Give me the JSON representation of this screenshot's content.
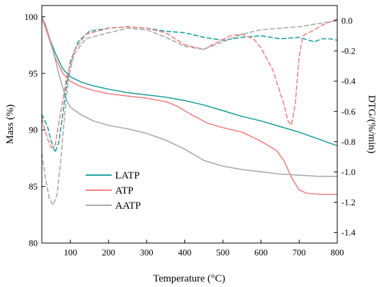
{
  "chart_data": {
    "type": "line",
    "xlabel": "Temperature (°C)",
    "ylabel_left": "Mass (%)",
    "ylabel_right": "DTG/(%/min)",
    "xlim": [
      25,
      800
    ],
    "ylim_left": [
      80,
      101
    ],
    "ylim_right": [
      -1.47,
      0.1
    ],
    "x_ticks": [
      100,
      200,
      300,
      400,
      500,
      600,
      700,
      800
    ],
    "y_left_ticks": [
      80,
      85,
      90,
      95,
      100
    ],
    "y_right_ticks": [
      0.0,
      -0.2,
      -0.4,
      -0.6,
      -0.8,
      -1.0,
      -1.2,
      -1.4
    ],
    "y_right_tick_labels": [
      "0.0",
      "-0.2",
      "-0.4",
      "-0.6",
      "-0.8",
      "-1.0",
      "-1.2",
      "-1.4"
    ],
    "legend_position": "bottom-left",
    "grid": false,
    "series": [
      {
        "name": "LATP",
        "color": "#1f9e9a",
        "axis": "left",
        "style": "solid",
        "points": [
          [
            25,
            99.9
          ],
          [
            40,
            98.6
          ],
          [
            60,
            96.8
          ],
          [
            80,
            95.4
          ],
          [
            100,
            94.7
          ],
          [
            130,
            94.2
          ],
          [
            160,
            93.9
          ],
          [
            200,
            93.6
          ],
          [
            250,
            93.3
          ],
          [
            300,
            93.1
          ],
          [
            350,
            92.9
          ],
          [
            400,
            92.6
          ],
          [
            450,
            92.2
          ],
          [
            500,
            91.7
          ],
          [
            550,
            91.2
          ],
          [
            600,
            90.8
          ],
          [
            650,
            90.3
          ],
          [
            700,
            89.8
          ],
          [
            750,
            89.2
          ],
          [
            800,
            88.6
          ]
        ]
      },
      {
        "name": "ATP",
        "color": "#f08080",
        "axis": "left",
        "style": "solid",
        "points": [
          [
            25,
            99.9
          ],
          [
            40,
            98.5
          ],
          [
            60,
            96.4
          ],
          [
            80,
            95.0
          ],
          [
            100,
            94.3
          ],
          [
            130,
            93.8
          ],
          [
            160,
            93.5
          ],
          [
            200,
            93.2
          ],
          [
            250,
            93.0
          ],
          [
            300,
            92.8
          ],
          [
            350,
            92.5
          ],
          [
            380,
            92.1
          ],
          [
            420,
            91.3
          ],
          [
            460,
            90.6
          ],
          [
            500,
            90.2
          ],
          [
            550,
            89.8
          ],
          [
            600,
            89.0
          ],
          [
            640,
            88.2
          ],
          [
            660,
            87.3
          ],
          [
            680,
            85.8
          ],
          [
            700,
            84.7
          ],
          [
            720,
            84.4
          ],
          [
            760,
            84.3
          ],
          [
            800,
            84.3
          ]
        ]
      },
      {
        "name": "AATP",
        "color": "#a9a9a9",
        "axis": "left",
        "style": "solid",
        "points": [
          [
            25,
            100.0
          ],
          [
            35,
            99.3
          ],
          [
            50,
            97.6
          ],
          [
            70,
            94.9
          ],
          [
            90,
            92.6
          ],
          [
            100,
            92.0
          ],
          [
            130,
            91.3
          ],
          [
            160,
            90.8
          ],
          [
            200,
            90.4
          ],
          [
            250,
            90.1
          ],
          [
            300,
            89.7
          ],
          [
            350,
            89.1
          ],
          [
            400,
            88.3
          ],
          [
            450,
            87.3
          ],
          [
            500,
            86.8
          ],
          [
            550,
            86.5
          ],
          [
            600,
            86.3
          ],
          [
            650,
            86.1
          ],
          [
            700,
            86.0
          ],
          [
            750,
            85.9
          ],
          [
            800,
            85.9
          ]
        ]
      },
      {
        "name": "LATP DTG",
        "color": "#1f9e9a",
        "axis": "right",
        "style": "dashed",
        "points": [
          [
            25,
            -0.62
          ],
          [
            40,
            -0.7
          ],
          [
            50,
            -0.8
          ],
          [
            60,
            -0.87
          ],
          [
            70,
            -0.8
          ],
          [
            80,
            -0.62
          ],
          [
            90,
            -0.42
          ],
          [
            100,
            -0.27
          ],
          [
            120,
            -0.14
          ],
          [
            150,
            -0.07
          ],
          [
            200,
            -0.05
          ],
          [
            250,
            -0.04
          ],
          [
            300,
            -0.05
          ],
          [
            350,
            -0.07
          ],
          [
            400,
            -0.08
          ],
          [
            450,
            -0.11
          ],
          [
            500,
            -0.13
          ],
          [
            550,
            -0.11
          ],
          [
            600,
            -0.1
          ],
          [
            650,
            -0.12
          ],
          [
            700,
            -0.11
          ],
          [
            740,
            -0.14
          ],
          [
            760,
            -0.12
          ],
          [
            780,
            -0.12
          ],
          [
            800,
            -0.13
          ]
        ]
      },
      {
        "name": "ATP DTG",
        "color": "#f08080",
        "axis": "right",
        "style": "dashed",
        "points": [
          [
            25,
            -0.65
          ],
          [
            40,
            -0.78
          ],
          [
            50,
            -0.84
          ],
          [
            60,
            -0.82
          ],
          [
            75,
            -0.6
          ],
          [
            90,
            -0.38
          ],
          [
            110,
            -0.2
          ],
          [
            140,
            -0.09
          ],
          [
            200,
            -0.05
          ],
          [
            250,
            -0.04
          ],
          [
            300,
            -0.05
          ],
          [
            350,
            -0.08
          ],
          [
            400,
            -0.16
          ],
          [
            450,
            -0.19
          ],
          [
            480,
            -0.15
          ],
          [
            520,
            -0.1
          ],
          [
            550,
            -0.09
          ],
          [
            580,
            -0.12
          ],
          [
            600,
            -0.18
          ],
          [
            630,
            -0.32
          ],
          [
            660,
            -0.55
          ],
          [
            670,
            -0.66
          ],
          [
            680,
            -0.69
          ],
          [
            690,
            -0.55
          ],
          [
            700,
            -0.24
          ],
          [
            710,
            -0.1
          ],
          [
            740,
            -0.06
          ],
          [
            760,
            -0.03
          ],
          [
            780,
            -0.01
          ],
          [
            800,
            0.01
          ]
        ]
      },
      {
        "name": "AATP DTG",
        "color": "#a9a9a9",
        "axis": "right",
        "style": "dashed",
        "points": [
          [
            25,
            -0.88
          ],
          [
            35,
            -1.05
          ],
          [
            45,
            -1.18
          ],
          [
            55,
            -1.22
          ],
          [
            65,
            -1.15
          ],
          [
            75,
            -0.92
          ],
          [
            85,
            -0.62
          ],
          [
            95,
            -0.38
          ],
          [
            110,
            -0.22
          ],
          [
            140,
            -0.12
          ],
          [
            200,
            -0.08
          ],
          [
            250,
            -0.05
          ],
          [
            300,
            -0.06
          ],
          [
            350,
            -0.11
          ],
          [
            400,
            -0.17
          ],
          [
            450,
            -0.19
          ],
          [
            500,
            -0.14
          ],
          [
            550,
            -0.09
          ],
          [
            600,
            -0.06
          ],
          [
            650,
            -0.05
          ],
          [
            700,
            -0.04
          ],
          [
            750,
            -0.02
          ],
          [
            800,
            0.0
          ]
        ]
      }
    ]
  }
}
